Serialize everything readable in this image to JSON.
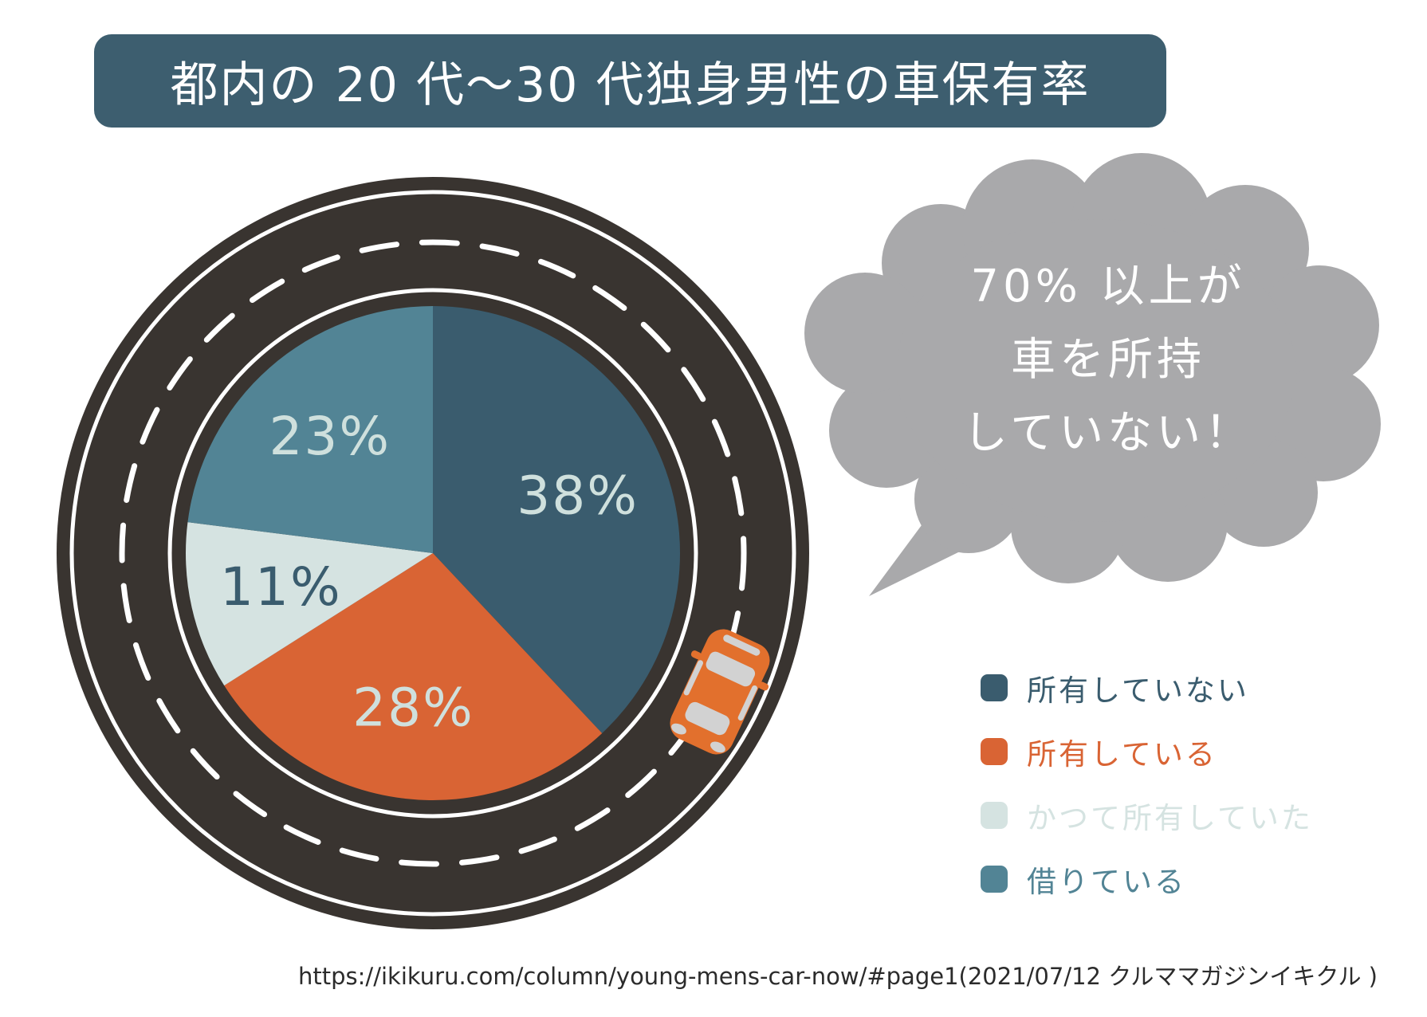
{
  "chart_data": {
    "type": "pie",
    "title": "都内の 20 代～30 代独身男性の車保有率",
    "unit": "%",
    "start_angle_deg": 0,
    "direction": "clockwise",
    "legend_position": "right",
    "series": [
      {
        "key": "not-own",
        "label": "所有していない",
        "value": 38,
        "color": "#3a5c6e",
        "label_color": "#cfe0dd"
      },
      {
        "key": "own",
        "label": "所有している",
        "value": 28,
        "color": "#d96434",
        "label_color": "#cfe0dd"
      },
      {
        "key": "used-to-own",
        "label": "かつて所有していた",
        "value": 11,
        "color": "#d5e3e1",
        "label_color": "#3a5c6e"
      },
      {
        "key": "renting",
        "label": "借りている",
        "value": 23,
        "color": "#528495",
        "label_color": "#cfe0dd"
      }
    ]
  },
  "title": {
    "bg_color": "#3d5e6f",
    "text_color": "#ffffff"
  },
  "callout": {
    "lines": [
      "70% 以上が",
      "車を所持",
      "していない！"
    ],
    "bubble_color": "#a9a9ab",
    "text_color": "#ffffff"
  },
  "road": {
    "color": "#393430",
    "line_color": "#ffffff"
  },
  "car": {
    "body_color": "#e2702d",
    "window_color": "#d2d2d2"
  },
  "source": {
    "text": "https://ikikuru.com/column/young-mens-car-now/#page1(2021/07/12 クルママガジンイキクル )"
  }
}
